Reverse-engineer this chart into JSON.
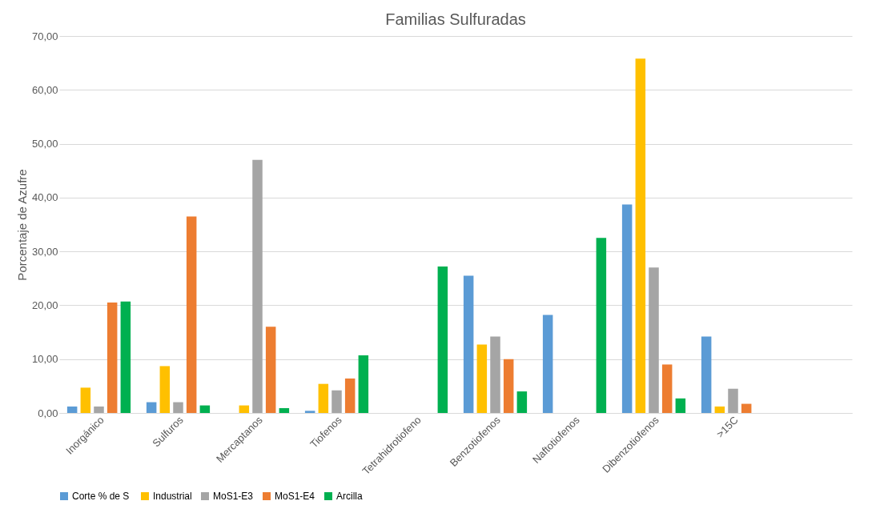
{
  "chart_data": {
    "type": "bar",
    "title": "Familias Sulfuradas",
    "ylabel": "Porcentaje de Azufre",
    "categories": [
      "Inorgánico",
      "Sulfuros",
      "Mercaptanos",
      "Tiofenos",
      "Tetrahidrotiofeno",
      "Benzotiofenos",
      "Naftotiofenos",
      "Dibenzotiofenos",
      ">15C",
      null
    ],
    "series": [
      {
        "name": "Corte  % de S",
        "color": "#5b9bd5",
        "values": [
          1.2,
          2.0,
          null,
          0.4,
          null,
          25.5,
          18.2,
          38.7,
          14.2,
          null
        ]
      },
      {
        "name": "Industrial",
        "color": "#ffc000",
        "values": [
          4.7,
          8.7,
          1.4,
          5.4,
          null,
          12.7,
          null,
          65.8,
          1.2,
          null
        ]
      },
      {
        "name": "MoS1-E3",
        "color": "#a5a5a5",
        "values": [
          1.2,
          2.0,
          47.0,
          4.2,
          null,
          14.2,
          null,
          27.0,
          4.5,
          null
        ]
      },
      {
        "name": "MoS1-E4",
        "color": "#ed7d31",
        "values": [
          20.5,
          36.5,
          16.0,
          6.4,
          null,
          10.0,
          null,
          9.0,
          1.7,
          null
        ]
      },
      {
        "name": "Arcilla",
        "color": "#00b050",
        "values": [
          20.7,
          1.4,
          0.9,
          10.7,
          27.2,
          4.0,
          32.5,
          2.7,
          null,
          null
        ]
      }
    ],
    "ylim": [
      0,
      70
    ],
    "yticks": [
      {
        "value": 0,
        "label": "0,00"
      },
      {
        "value": 10,
        "label": "10,00"
      },
      {
        "value": 20,
        "label": "20,00"
      },
      {
        "value": 30,
        "label": "30,00"
      },
      {
        "value": 40,
        "label": "40,00"
      },
      {
        "value": 50,
        "label": "50,00"
      },
      {
        "value": 60,
        "label": "60,00"
      },
      {
        "value": 70,
        "label": "70,00"
      }
    ],
    "grid": "y",
    "legend": "bottom"
  }
}
